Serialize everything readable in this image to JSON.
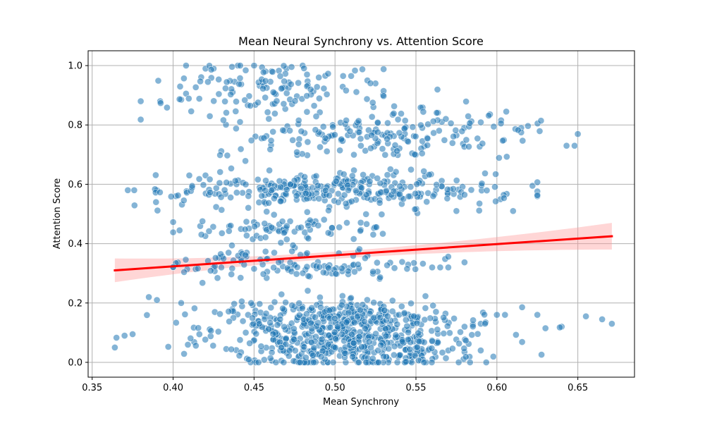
{
  "chart_data": {
    "type": "scatter",
    "title": "Mean Neural Synchrony vs. Attention Score",
    "xlabel": "Mean Synchrony",
    "ylabel": "Attention Score",
    "xlim": [
      0.3475,
      0.685
    ],
    "ylim": [
      -0.05,
      1.05
    ],
    "xticks": [
      0.35,
      0.4,
      0.45,
      0.5,
      0.55,
      0.6,
      0.65
    ],
    "xtick_labels": [
      "0.35",
      "0.40",
      "0.45",
      "0.50",
      "0.55",
      "0.60",
      "0.65"
    ],
    "yticks": [
      0.0,
      0.2,
      0.4,
      0.6,
      0.8,
      1.0
    ],
    "ytick_labels": [
      "0.0",
      "0.2",
      "0.4",
      "0.6",
      "0.8",
      "1.0"
    ],
    "grid": true,
    "point_color": "#1f77b4",
    "point_alpha": 0.55,
    "regression": {
      "color": "#ff0000",
      "ci_color": "#ff9999",
      "x_range": [
        0.364,
        0.671
      ],
      "y_at_start": 0.31,
      "y_at_end": 0.425,
      "ci_half_width_start": 0.04,
      "ci_half_width_mid": 0.012,
      "ci_half_width_end": 0.045
    },
    "clusters": [
      {
        "x_min": 0.365,
        "x_max": 0.67,
        "x_center": 0.51,
        "x_spread": 0.04,
        "y_center": 0.075,
        "y_spread": 0.055,
        "count": 520
      },
      {
        "x_min": 0.38,
        "x_max": 0.63,
        "x_center": 0.5,
        "x_spread": 0.04,
        "y_center": 0.16,
        "y_spread": 0.025,
        "count": 170
      },
      {
        "x_min": 0.4,
        "x_max": 0.58,
        "x_center": 0.48,
        "x_spread": 0.04,
        "y_center": 0.33,
        "y_spread": 0.025,
        "count": 120
      },
      {
        "x_min": 0.4,
        "x_max": 0.56,
        "x_center": 0.47,
        "x_spread": 0.035,
        "y_center": 0.45,
        "y_spread": 0.02,
        "count": 80
      },
      {
        "x_min": 0.37,
        "x_max": 0.625,
        "x_center": 0.5,
        "x_spread": 0.05,
        "y_center": 0.58,
        "y_spread": 0.03,
        "count": 300
      },
      {
        "x_min": 0.4,
        "x_max": 0.65,
        "x_center": 0.53,
        "x_spread": 0.05,
        "y_center": 0.77,
        "y_spread": 0.045,
        "count": 200
      },
      {
        "x_min": 0.38,
        "x_max": 0.53,
        "x_center": 0.46,
        "x_spread": 0.035,
        "y_center": 0.93,
        "y_spread": 0.04,
        "count": 110
      }
    ],
    "points": [
      [
        0.364,
        0.05
      ],
      [
        0.365,
        0.083
      ],
      [
        0.37,
        0.09
      ],
      [
        0.375,
        0.095
      ],
      [
        0.38,
        0.88
      ],
      [
        0.392,
        0.88
      ],
      [
        0.372,
        0.58
      ],
      [
        0.376,
        0.58
      ],
      [
        0.39,
        0.58
      ],
      [
        0.405,
        0.885
      ],
      [
        0.408,
        1.0
      ],
      [
        0.41,
        0.63
      ],
      [
        0.42,
        0.63
      ],
      [
        0.404,
        0.445
      ],
      [
        0.405,
        0.2
      ],
      [
        0.385,
        0.22
      ],
      [
        0.39,
        0.21
      ],
      [
        0.575,
        0.51
      ],
      [
        0.61,
        0.51
      ],
      [
        0.643,
        0.73
      ],
      [
        0.648,
        0.73
      ],
      [
        0.655,
        0.155
      ],
      [
        0.665,
        0.145
      ],
      [
        0.671,
        0.13
      ],
      [
        0.625,
        0.16
      ],
      [
        0.63,
        0.115
      ],
      [
        0.64,
        0.12
      ],
      [
        0.622,
        0.595
      ],
      [
        0.615,
        0.79
      ],
      [
        0.615,
        0.775
      ],
      [
        0.57,
        0.04
      ],
      [
        0.58,
        0.035
      ],
      [
        0.59,
        0.04
      ],
      [
        0.4,
        0.32
      ],
      [
        0.425,
        0.32
      ],
      [
        0.56,
        0.32
      ],
      [
        0.565,
        0.32
      ],
      [
        0.57,
        0.32
      ],
      [
        0.49,
        0.96
      ],
      [
        0.505,
        0.965
      ],
      [
        0.51,
        0.965
      ],
      [
        0.52,
        0.95
      ],
      [
        0.525,
        0.94
      ],
      [
        0.42,
        0.99
      ],
      [
        0.425,
        0.99
      ],
      [
        0.44,
        1.0
      ],
      [
        0.45,
        1.0
      ],
      [
        0.47,
        0.99
      ],
      [
        0.48,
        1.0
      ],
      [
        0.6,
        0.16
      ],
      [
        0.605,
        0.16
      ],
      [
        0.59,
        0.13
      ],
      [
        0.58,
        0.12
      ]
    ]
  }
}
